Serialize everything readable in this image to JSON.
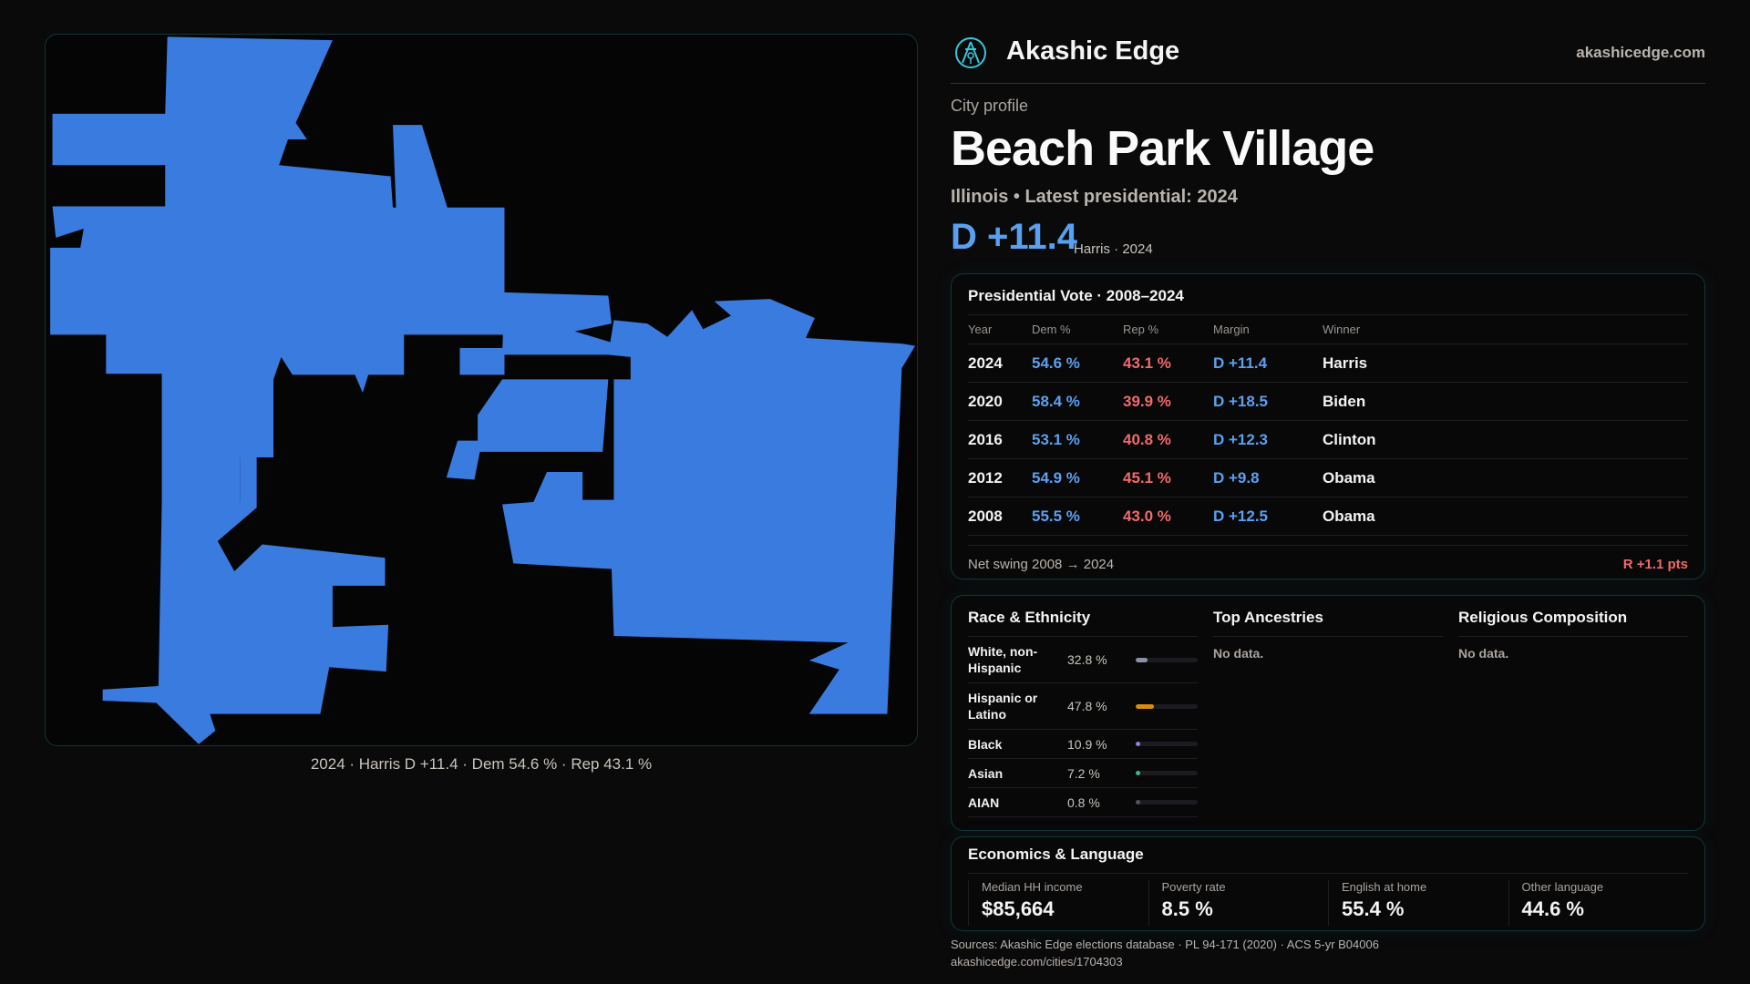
{
  "map": {
    "caption": "2024 · Harris D +11.4 · Dem 54.6 % · Rep 43.1 %",
    "fill_color": "#3a7be0"
  },
  "header": {
    "brand": "Akashic Edge",
    "site": "akashicedge.com",
    "logo_icon": "compass-seal-icon"
  },
  "profile": {
    "kicker": "City profile",
    "title": "Beach Park Village",
    "subtitle": "Illinois • Latest presidential: 2024",
    "margin": "D +11.4",
    "margin_note": "Harris · 2024"
  },
  "vote": {
    "title": "Presidential Vote · 2008–2024",
    "columns": [
      "Year",
      "Dem %",
      "Rep %",
      "Margin",
      "Winner"
    ],
    "rows": [
      [
        "2024",
        "54.6 %",
        "43.1 %",
        "D +11.4",
        "Harris"
      ],
      [
        "2020",
        "58.4 %",
        "39.9 %",
        "D +18.5",
        "Biden"
      ],
      [
        "2016",
        "53.1 %",
        "40.8 %",
        "D +12.3",
        "Clinton"
      ],
      [
        "2012",
        "54.9 %",
        "45.1 %",
        "D +9.8",
        "Obama"
      ],
      [
        "2008",
        "55.5 %",
        "43.0 %",
        "D +12.5",
        "Obama"
      ]
    ],
    "swing_label": "Net swing 2008 → 2024",
    "swing_value": "R +1.1 pts"
  },
  "race": {
    "title": "Race & Ethnicity",
    "rows": [
      {
        "label": "White, non-Hispanic",
        "pct": "32.8 %",
        "value": 32.8,
        "color": "#8a93a6"
      },
      {
        "label": "Hispanic or Latino",
        "pct": "47.8 %",
        "value": 47.8,
        "color": "#d98e12"
      },
      {
        "label": "Black",
        "pct": "10.9 %",
        "value": 10.9,
        "color": "#9a7de0"
      },
      {
        "label": "Asian",
        "pct": "7.2 %",
        "value": 7.2,
        "color": "#2fbf8a"
      },
      {
        "label": "AIAN",
        "pct": "0.8 %",
        "value": 0.8,
        "color": "#555"
      }
    ]
  },
  "ancestries": {
    "title": "Top Ancestries",
    "empty": "No data."
  },
  "religion": {
    "title": "Religious Composition",
    "empty": "No data."
  },
  "econ": {
    "title": "Economics & Language",
    "stats": [
      {
        "label": "Median HH income",
        "value": "$85,664"
      },
      {
        "label": "Poverty rate",
        "value": "8.5 %"
      },
      {
        "label": "English at home",
        "value": "55.4 %"
      },
      {
        "label": "Other language",
        "value": "44.6 %"
      }
    ]
  },
  "footer": {
    "sources": "Sources: Akashic Edge elections database · PL 94-171 (2020) · ACS 5-yr B04006",
    "url": "akashicedge.com/cities/1704303"
  }
}
